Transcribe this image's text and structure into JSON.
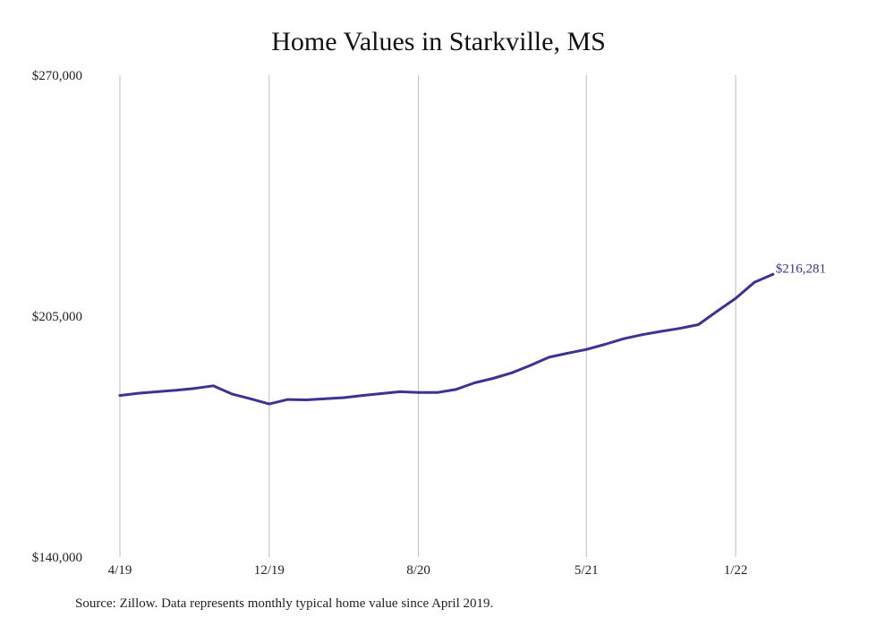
{
  "chart_data": {
    "type": "line",
    "title": "Home Values in Starkville, MS",
    "ylim": [
      140000,
      270000
    ],
    "y_ticks": [
      {
        "value": 270000,
        "label": "$270,000"
      },
      {
        "value": 205000,
        "label": "$205,000"
      },
      {
        "value": 140000,
        "label": "$140,000"
      }
    ],
    "x_ticks": [
      {
        "index": 0,
        "label": "4/19"
      },
      {
        "index": 8,
        "label": "12/19"
      },
      {
        "index": 16,
        "label": "8/20"
      },
      {
        "index": 25,
        "label": "5/21"
      },
      {
        "index": 33,
        "label": "1/22"
      }
    ],
    "grid": "vertical",
    "series": [
      {
        "color": "#3b3493",
        "values": [
          183600,
          184200,
          184600,
          185000,
          185500,
          186200,
          184000,
          182700,
          181300,
          182500,
          182400,
          182700,
          183000,
          183600,
          184100,
          184600,
          184400,
          184400,
          185200,
          187000,
          188200,
          189700,
          191700,
          193900,
          195000,
          196000,
          197400,
          198900,
          200000,
          200900,
          201700,
          202700,
          206300,
          209800,
          214100,
          216281
        ],
        "end_label": "$216,281"
      }
    ]
  },
  "footer": {
    "source": "Source: Zillow. Data represents monthly typical home value since April 2019."
  }
}
